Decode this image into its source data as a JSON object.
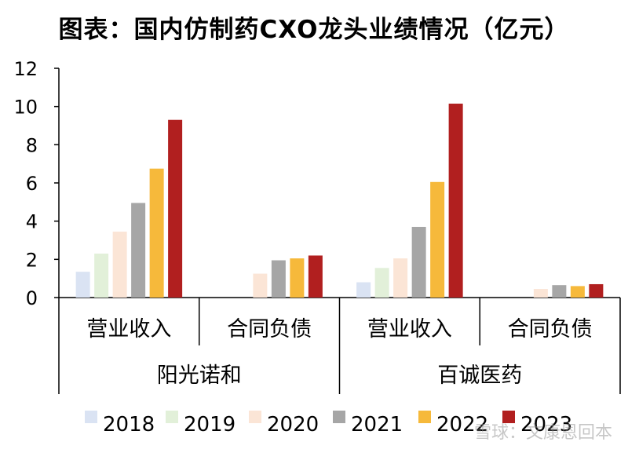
{
  "chart_data": {
    "type": "bar",
    "title": "图表：国内仿制药CXO龙头业绩情况（亿元）",
    "ylim": [
      0,
      12
    ],
    "yticks": [
      "0",
      "2",
      "4",
      "6",
      "8",
      "10",
      "12"
    ],
    "grid": false,
    "legend_position": "bottom",
    "companies": [
      "阳光诺和",
      "百诚医药"
    ],
    "metrics": [
      "营业收入",
      "合同负债"
    ],
    "categories": [
      "阳光诺和-营业收入",
      "阳光诺和-合同负债",
      "百诚医药-营业收入",
      "百诚医药-合同负债"
    ],
    "series": [
      {
        "name": "2018",
        "color": "#dae3f3",
        "values": [
          1.35,
          null,
          0.8,
          null
        ]
      },
      {
        "name": "2019",
        "color": "#e2f0d9",
        "values": [
          2.3,
          null,
          1.55,
          null
        ]
      },
      {
        "name": "2020",
        "color": "#fbe5d6",
        "values": [
          3.45,
          1.25,
          2.05,
          0.45
        ]
      },
      {
        "name": "2021",
        "color": "#a6a6a6",
        "values": [
          4.95,
          1.95,
          3.7,
          0.65
        ]
      },
      {
        "name": "2022",
        "color": "#f6b93b",
        "values": [
          6.75,
          2.05,
          6.05,
          0.6
        ]
      },
      {
        "name": "2023",
        "color": "#b11f1f",
        "values": [
          9.3,
          2.2,
          10.15,
          0.7
        ]
      }
    ]
  },
  "watermark": "雪球：文康恩回本"
}
